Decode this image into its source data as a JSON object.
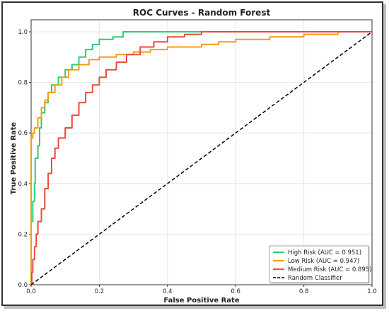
{
  "chart_data": {
    "type": "line",
    "title": "ROC Curves - Random Forest",
    "xlabel": "False Positive Rate",
    "ylabel": "True Positive Rate",
    "xlim": [
      0,
      1
    ],
    "ylim": [
      0,
      1
    ],
    "xticks": [
      "0.0",
      "0.2",
      "0.4",
      "0.6",
      "0.8",
      "1.0"
    ],
    "yticks": [
      "0.0",
      "0.2",
      "0.4",
      "0.6",
      "0.8",
      "1.0"
    ],
    "grid": true,
    "legend_position": "lower-right",
    "series": [
      {
        "name": "High Risk (AUC = 0.951)",
        "color": "#2ecc71",
        "points": [
          [
            0,
            0
          ],
          [
            0,
            0.25
          ],
          [
            0.005,
            0.33
          ],
          [
            0.01,
            0.4
          ],
          [
            0.012,
            0.5
          ],
          [
            0.02,
            0.55
          ],
          [
            0.025,
            0.62
          ],
          [
            0.03,
            0.68
          ],
          [
            0.04,
            0.72
          ],
          [
            0.05,
            0.76
          ],
          [
            0.06,
            0.79
          ],
          [
            0.08,
            0.82
          ],
          [
            0.1,
            0.85
          ],
          [
            0.12,
            0.87
          ],
          [
            0.14,
            0.9
          ],
          [
            0.16,
            0.93
          ],
          [
            0.18,
            0.95
          ],
          [
            0.2,
            0.97
          ],
          [
            0.22,
            0.97
          ],
          [
            0.24,
            0.98
          ],
          [
            0.27,
            1.0
          ],
          [
            0.4,
            1.0
          ],
          [
            0.6,
            1.0
          ],
          [
            0.8,
            1.0
          ],
          [
            1.0,
            1.0
          ]
        ]
      },
      {
        "name": "Low Risk (AUC = 0.947)",
        "color": "#f39c12",
        "points": [
          [
            0,
            0
          ],
          [
            0,
            0.58
          ],
          [
            0.005,
            0.6
          ],
          [
            0.01,
            0.62
          ],
          [
            0.02,
            0.66
          ],
          [
            0.03,
            0.7
          ],
          [
            0.04,
            0.73
          ],
          [
            0.05,
            0.76
          ],
          [
            0.07,
            0.79
          ],
          [
            0.09,
            0.82
          ],
          [
            0.11,
            0.85
          ],
          [
            0.14,
            0.87
          ],
          [
            0.17,
            0.89
          ],
          [
            0.2,
            0.9
          ],
          [
            0.25,
            0.91
          ],
          [
            0.3,
            0.92
          ],
          [
            0.35,
            0.93
          ],
          [
            0.4,
            0.94
          ],
          [
            0.5,
            0.95
          ],
          [
            0.55,
            0.96
          ],
          [
            0.6,
            0.97
          ],
          [
            0.7,
            0.98
          ],
          [
            0.8,
            0.99
          ],
          [
            0.9,
            1.0
          ],
          [
            1.0,
            1.0
          ]
        ]
      },
      {
        "name": "Medium Risk (AUC = 0.895)",
        "color": "#e74c3c",
        "points": [
          [
            0,
            0
          ],
          [
            0.002,
            0.05
          ],
          [
            0.005,
            0.1
          ],
          [
            0.01,
            0.15
          ],
          [
            0.015,
            0.2
          ],
          [
            0.02,
            0.25
          ],
          [
            0.03,
            0.3
          ],
          [
            0.04,
            0.38
          ],
          [
            0.05,
            0.44
          ],
          [
            0.06,
            0.5
          ],
          [
            0.07,
            0.54
          ],
          [
            0.08,
            0.58
          ],
          [
            0.1,
            0.62
          ],
          [
            0.12,
            0.67
          ],
          [
            0.14,
            0.72
          ],
          [
            0.16,
            0.76
          ],
          [
            0.18,
            0.79
          ],
          [
            0.2,
            0.82
          ],
          [
            0.22,
            0.85
          ],
          [
            0.25,
            0.88
          ],
          [
            0.28,
            0.91
          ],
          [
            0.32,
            0.94
          ],
          [
            0.36,
            0.96
          ],
          [
            0.4,
            0.98
          ],
          [
            0.45,
            0.99
          ],
          [
            0.5,
            1.0
          ],
          [
            0.7,
            1.0
          ],
          [
            1.0,
            1.0
          ]
        ]
      },
      {
        "name": "Random Classifier",
        "color": "#000000",
        "dashed": true,
        "points": [
          [
            0,
            0
          ],
          [
            1,
            1
          ]
        ]
      }
    ]
  }
}
